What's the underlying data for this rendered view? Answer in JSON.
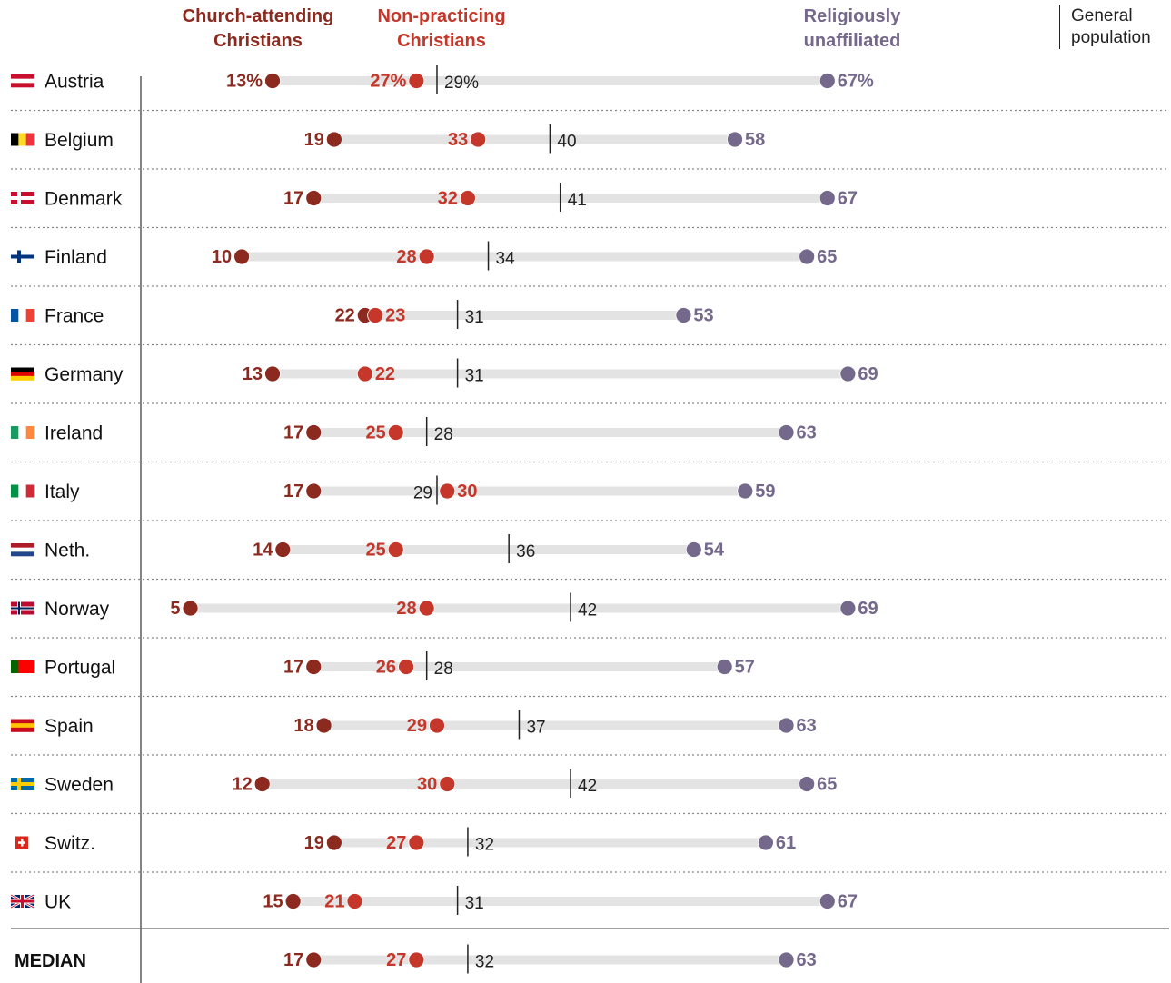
{
  "chart_data": {
    "type": "dot",
    "categories": [
      "Austria",
      "Belgium",
      "Denmark",
      "Finland",
      "France",
      "Germany",
      "Ireland",
      "Italy",
      "Neth.",
      "Norway",
      "Portugal",
      "Spain",
      "Sweden",
      "Switz.",
      "UK",
      "MEDIAN"
    ],
    "xlim": [
      0,
      100
    ],
    "series": [
      {
        "name": "Church-attending Christians",
        "color": "#8c2a1f",
        "marker": "dot",
        "values": [
          13,
          19,
          17,
          10,
          22,
          13,
          17,
          17,
          14,
          5,
          17,
          18,
          12,
          19,
          15,
          17
        ],
        "value_labels": [
          "13%",
          "19",
          "17",
          "10",
          "22",
          "13",
          "17",
          "17",
          "14",
          "5",
          "17",
          "18",
          "12",
          "19",
          "15",
          "17"
        ]
      },
      {
        "name": "Non-practicing Christians",
        "color": "#c4372a",
        "marker": "dot",
        "values": [
          27,
          33,
          32,
          28,
          23,
          22,
          25,
          30,
          25,
          28,
          26,
          29,
          30,
          27,
          21,
          27
        ],
        "value_labels": [
          "27%",
          "33",
          "32",
          "28",
          "23",
          "22",
          "25",
          "30",
          "25",
          "28",
          "26",
          "29",
          "30",
          "27",
          "21",
          "27"
        ]
      },
      {
        "name": "Religiously unaffiliated",
        "color": "#74688b",
        "marker": "dot",
        "values": [
          67,
          58,
          67,
          65,
          53,
          69,
          63,
          59,
          54,
          69,
          57,
          63,
          65,
          61,
          67,
          63
        ],
        "value_labels": [
          "67%",
          "58",
          "67",
          "65",
          "53",
          "69",
          "63",
          "59",
          "54",
          "69",
          "57",
          "63",
          "65",
          "61",
          "67",
          "63"
        ]
      },
      {
        "name": "General population",
        "color": "#222222",
        "marker": "tick",
        "values": [
          29,
          40,
          41,
          34,
          31,
          31,
          28,
          29,
          36,
          42,
          28,
          37,
          42,
          32,
          31,
          32
        ],
        "value_labels": [
          "29%",
          "40",
          "41",
          "34",
          "31",
          "31",
          "28",
          "29",
          "36",
          "42",
          "28",
          "37",
          "42",
          "32",
          "31",
          "32"
        ]
      }
    ]
  }
}
